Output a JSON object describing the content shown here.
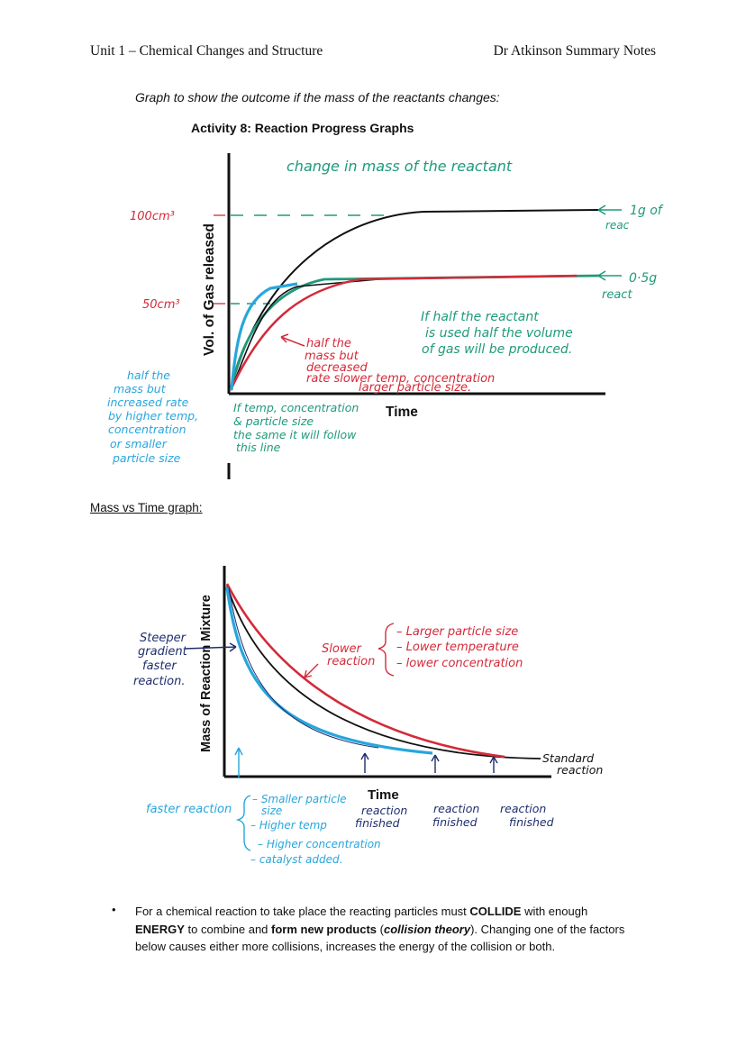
{
  "header": {
    "left": "Unit 1 – Chemical Changes and Structure",
    "right": "Dr Atkinson Summary Notes"
  },
  "caption": "Graph to show the outcome if the mass of the reactants changes:",
  "graph1": {
    "title": "Activity 8: Reaction Progress Graphs",
    "ylabel": "Vol. of Gas released",
    "xlabel": "Time",
    "heading_note": "change in mass of the reactant",
    "y_tick_100": "100cm³",
    "y_tick_50": "50cm³",
    "label_1g": [
      "1g of",
      "reac"
    ],
    "label_05g": [
      "0·5g",
      "react"
    ],
    "half_reactant_note": [
      "If half the reactant",
      "is used half the volume",
      "of gas will be produced."
    ],
    "half_mass_decreased": [
      "half the",
      "mass but",
      "decreased",
      "rate slower temp, concentration",
      "larger particle size."
    ],
    "half_mass_increased": [
      "half the",
      "mass but",
      "increased rate",
      "by higher temp,",
      "concentration",
      "or smaller",
      "particle size"
    ],
    "same_line_note": [
      "If temp, concentration",
      "& particle size",
      "the same it will follow",
      "this line"
    ]
  },
  "subhead": "Mass vs Time graph:",
  "graph2": {
    "ylabel": "Mass of Reaction Mixture",
    "xlabel": "Time",
    "steeper": [
      "Steeper",
      "gradient",
      "faster",
      "reaction."
    ],
    "slower": [
      "Slower",
      "reaction"
    ],
    "slower_factors": [
      "– Larger particle size",
      "– Lower temperature",
      "– lower concentration"
    ],
    "standard": [
      "Standard",
      "reaction"
    ],
    "faster": "faster reaction",
    "faster_factors": [
      "– Smaller particle",
      "size",
      "– Higher temp",
      "– Higher concentration",
      "– catalyst added."
    ],
    "finished_1": [
      "reaction",
      "finished"
    ],
    "finished_2": [
      "reaction",
      "finished"
    ],
    "finished_3": [
      "reaction",
      "finished"
    ]
  },
  "bullet": {
    "p1": "For a chemical reaction to take place the reacting particles must ",
    "b1": "COLLIDE",
    "p2": " with enough ",
    "b2": "ENERGY",
    "p3": " to combine and ",
    "b3": "form new products",
    "p4": " (",
    "b4": "collision theory",
    "p5": "). Changing one of the factors below causes either more collisions, increases the energy of the collision or both."
  },
  "colors": {
    "red": "#d42a3a",
    "teal": "#1e9a7a",
    "cyan": "#27a6dc",
    "navy": "#1f2e6e",
    "black": "#111111"
  }
}
